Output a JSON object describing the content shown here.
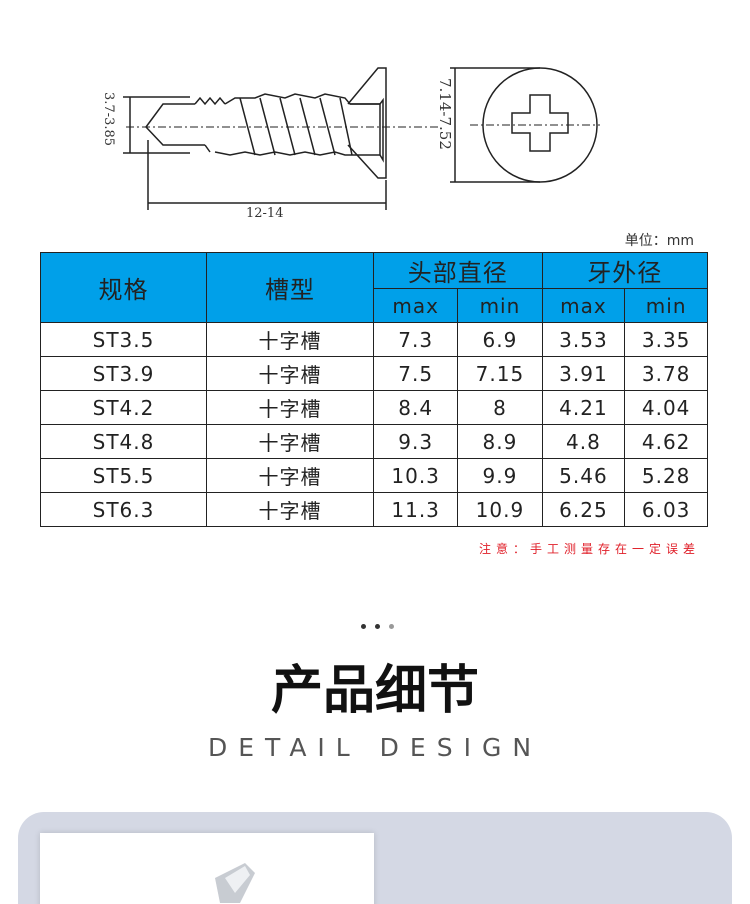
{
  "drawing": {
    "thread_dia": "3.7-3.85",
    "length": "12-14",
    "head_dia": "7.14-7.52"
  },
  "unit_label": "单位：mm",
  "table": {
    "headers": {
      "spec": "规格",
      "slot": "槽型",
      "head": "头部直径",
      "thread": "牙外径",
      "max": "max",
      "min": "min"
    },
    "rows": [
      [
        "ST3.5",
        "十字槽",
        "7.3",
        "6.9",
        "3.53",
        "3.35"
      ],
      [
        "ST3.9",
        "十字槽",
        "7.5",
        "7.15",
        "3.91",
        "3.78"
      ],
      [
        "ST4.2",
        "十字槽",
        "8.4",
        "8",
        "4.21",
        "4.04"
      ],
      [
        "ST4.8",
        "十字槽",
        "9.3",
        "8.9",
        "4.8",
        "4.62"
      ],
      [
        "ST5.5",
        "十字槽",
        "10.3",
        "9.9",
        "5.46",
        "5.28"
      ],
      [
        "ST6.3",
        "十字槽",
        "11.3",
        "10.9",
        "6.25",
        "6.03"
      ]
    ],
    "header_color": "#00a0e9"
  },
  "note": "注意：手工测量存在一定误差",
  "section": {
    "title": "产品细节",
    "subtitle": "DETAIL DESIGN"
  }
}
